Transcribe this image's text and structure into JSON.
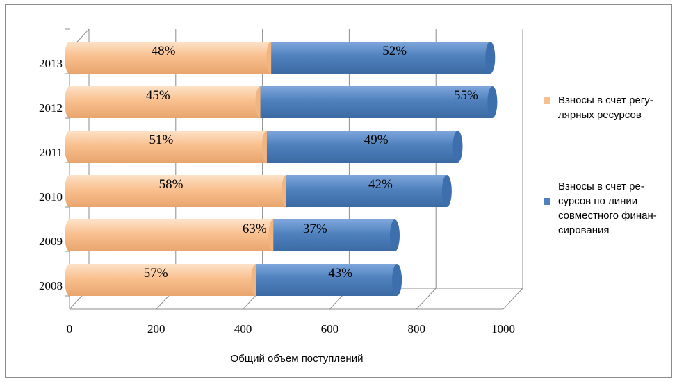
{
  "chart_data": {
    "type": "bar",
    "orientation": "horizontal",
    "stacked": true,
    "categories": [
      "2013",
      "2012",
      "2011",
      "2010",
      "2009",
      "2008"
    ],
    "xlabel": "Общий объем поступлений",
    "xlim": [
      0,
      1000
    ],
    "xticks": [
      "0",
      "200",
      "400",
      "600",
      "800",
      "1000"
    ],
    "grid": true,
    "legend_position": "right",
    "series": [
      {
        "name": "Взносы в счет регулярных ресурсов",
        "legend_lines": [
          "Взносы в счет регу-",
          "лярных ресурсов"
        ],
        "color": "#f9c08f",
        "values": [
          465,
          440,
          455,
          500,
          470,
          430
        ],
        "labels": [
          "48%",
          "45%",
          "51%",
          "58%",
          "63%",
          "57%"
        ]
      },
      {
        "name": "Взносы в счет ресурсов по линии совместного финансирования",
        "legend_lines": [
          "Взносы в счет ре-",
          "сурсов по линии",
          "совместного финан-",
          "сирования"
        ],
        "color": "#4f81bd",
        "values": [
          505,
          535,
          440,
          370,
          280,
          325
        ],
        "labels": [
          "52%",
          "55%",
          "49%",
          "42%",
          "37%",
          "43%"
        ]
      }
    ]
  }
}
